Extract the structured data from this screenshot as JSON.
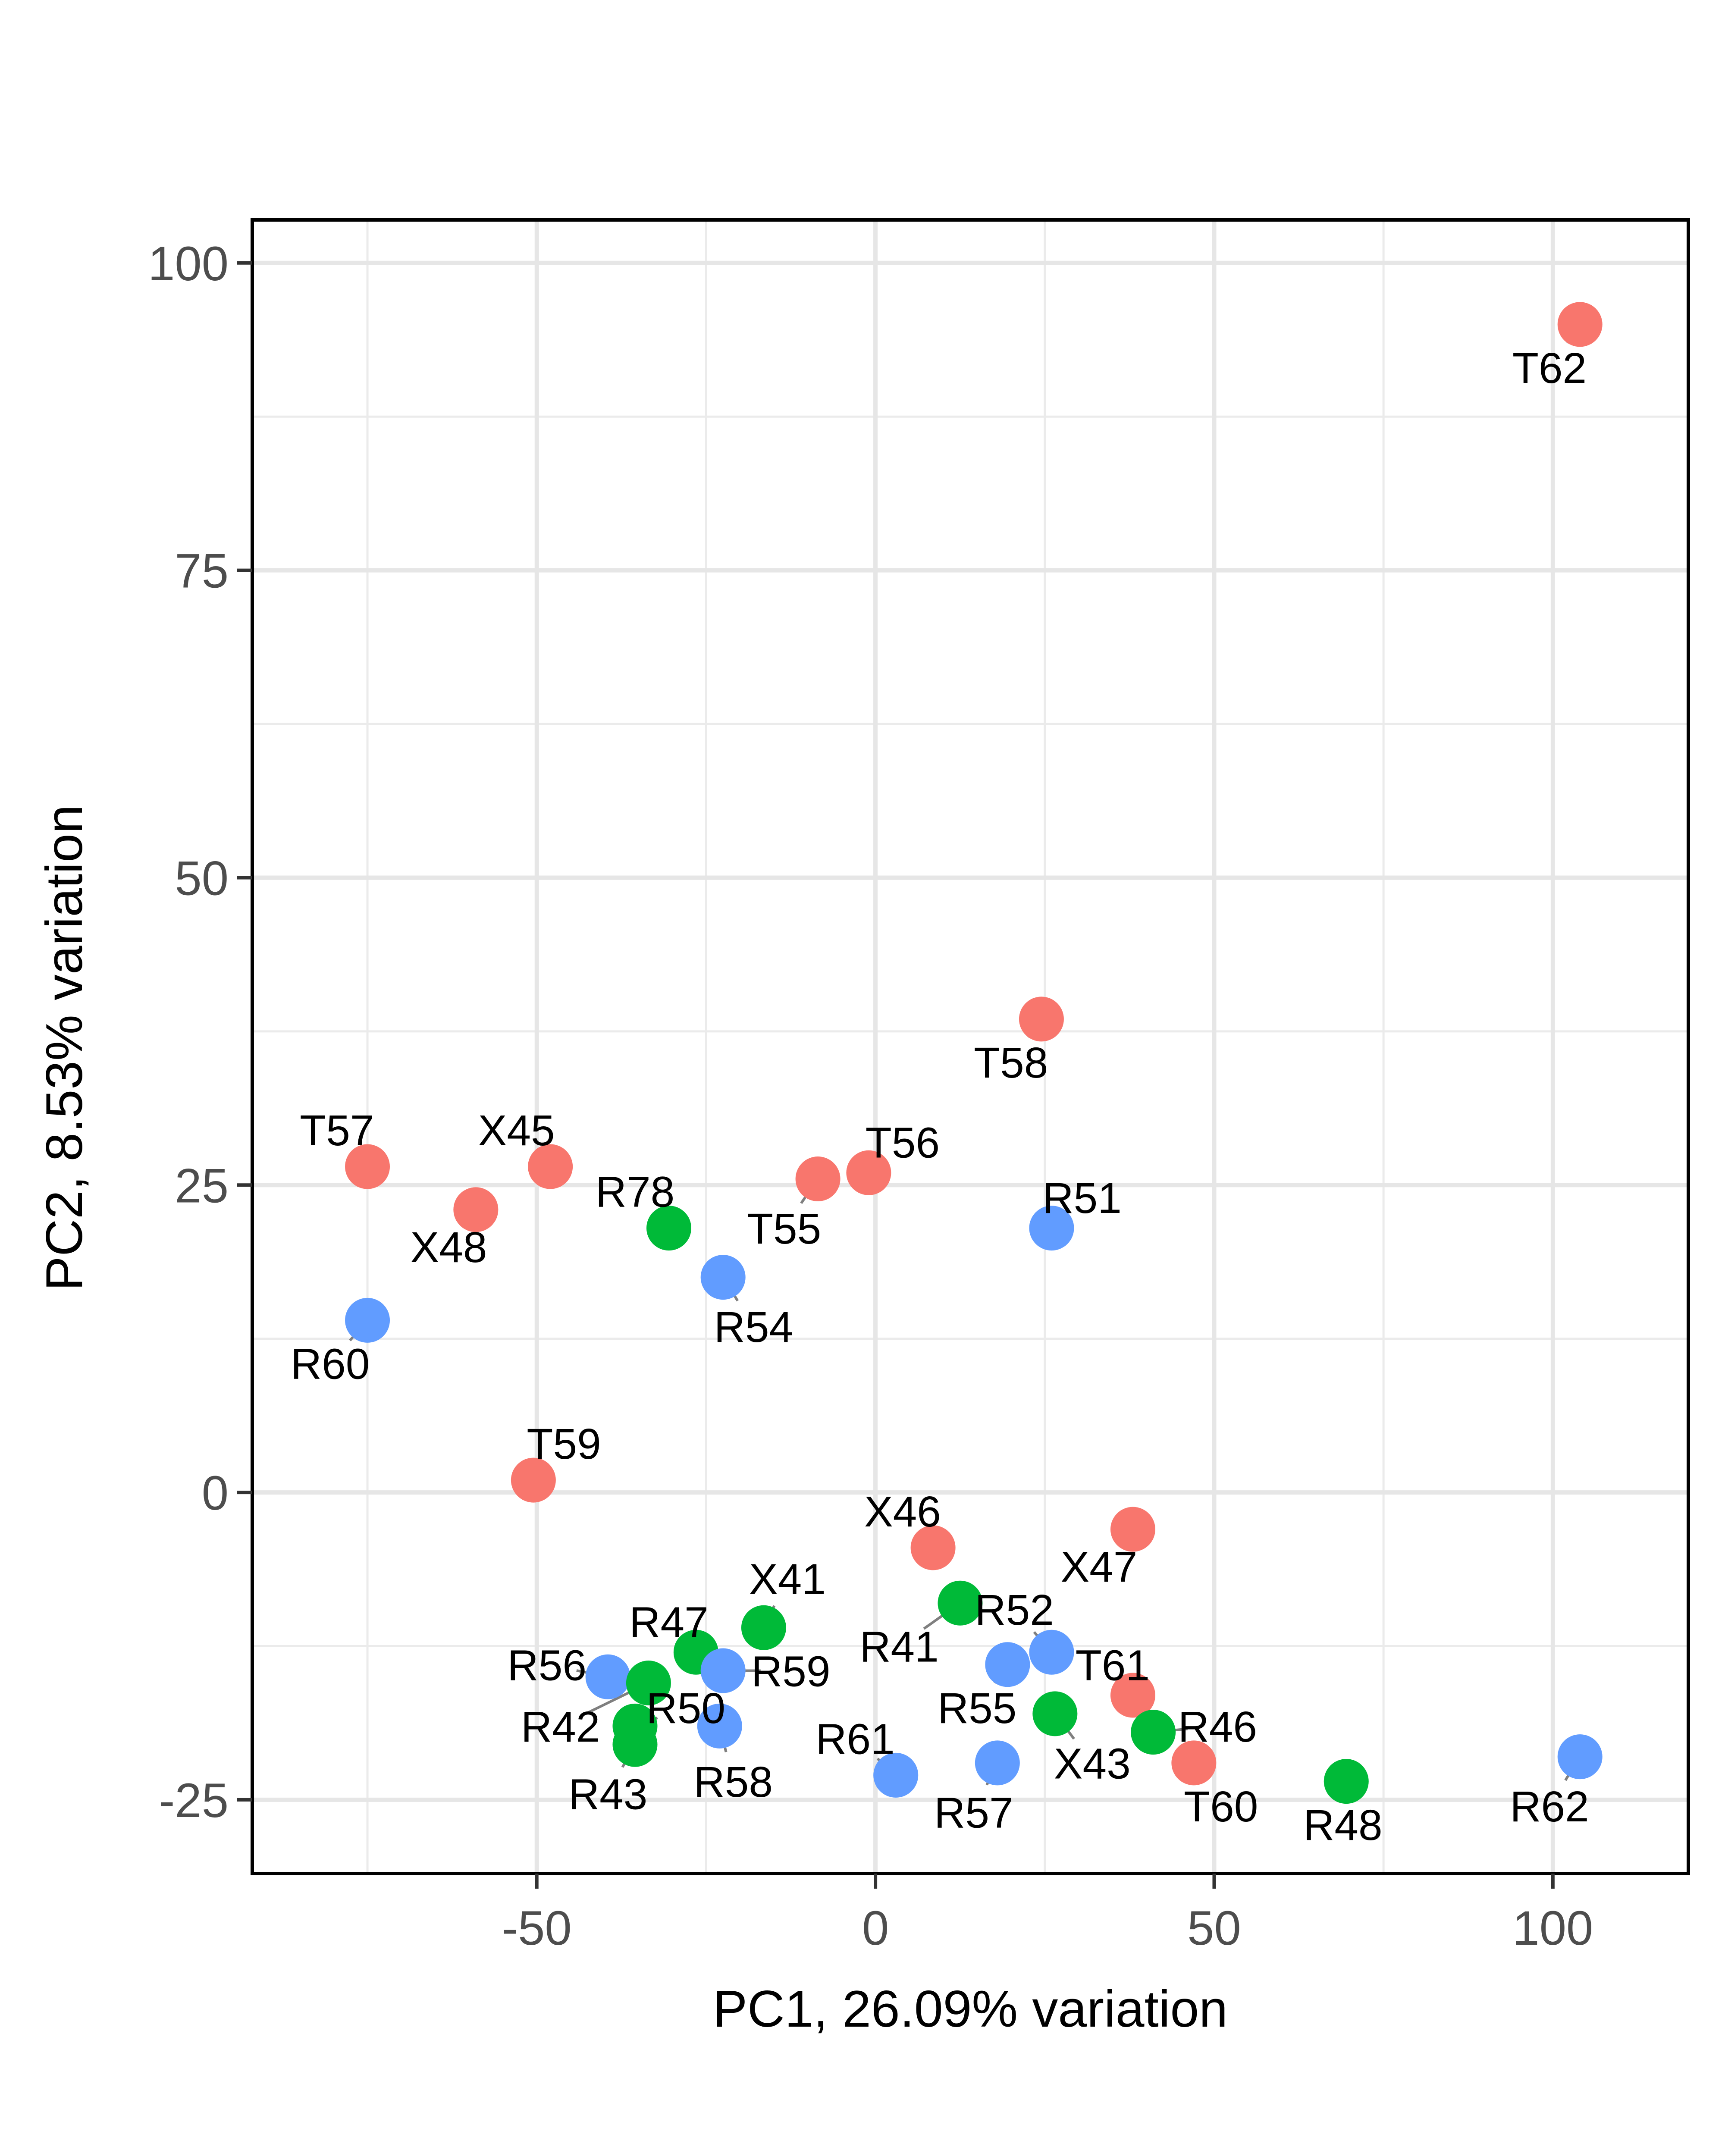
{
  "chart_data": {
    "type": "scatter",
    "title": "",
    "xlabel": "PC1, 26.09% variation",
    "ylabel": "PC2, 8.53% variation",
    "xlim": [
      -92,
      120
    ],
    "ylim": [
      -31,
      103.5
    ],
    "xticks": [
      -50,
      0,
      50,
      100
    ],
    "xtick_labels": [
      "-50",
      "0",
      "50",
      "100"
    ],
    "yticks": [
      -25,
      0,
      25,
      50,
      75,
      100
    ],
    "ytick_labels": [
      "-25",
      "0",
      "25",
      "50",
      "75",
      "100"
    ],
    "grid": true,
    "legend": "none",
    "group_colors": {
      "red": "#F8766D",
      "green": "#00BA38",
      "blue": "#619CFF"
    },
    "points": [
      {
        "label": "T62",
        "x": 104,
        "y": 95,
        "group": "red",
        "label_x": 99.5,
        "label_y": 91.5
      },
      {
        "label": "T58",
        "x": 24.5,
        "y": 38.5,
        "group": "red",
        "label_x": 20,
        "label_y": 35
      },
      {
        "label": "T57",
        "x": -75,
        "y": 26.5,
        "group": "red",
        "label_x": -79.5,
        "label_y": 29.5
      },
      {
        "label": "X45",
        "x": -48,
        "y": 26.5,
        "group": "red",
        "label_x": -53,
        "label_y": 29.5
      },
      {
        "label": "T56",
        "x": -1,
        "y": 26,
        "group": "red",
        "label_x": 4,
        "label_y": 28.5
      },
      {
        "label": "T55",
        "x": -8.5,
        "y": 25.5,
        "group": "red",
        "label_x": -13.5,
        "label_y": 21.5
      },
      {
        "label": "X48",
        "x": -59,
        "y": 23,
        "group": "red",
        "label_x": -63,
        "label_y": 20
      },
      {
        "label": "R78",
        "x": -30.5,
        "y": 21.5,
        "group": "green",
        "label_x": -35.5,
        "label_y": 24.5
      },
      {
        "label": "R51",
        "x": 26,
        "y": 21.5,
        "group": "blue",
        "label_x": 30.5,
        "label_y": 24
      },
      {
        "label": "R54",
        "x": -22.5,
        "y": 17.5,
        "group": "blue",
        "label_x": -18,
        "label_y": 13.5
      },
      {
        "label": "R60",
        "x": -75,
        "y": 14,
        "group": "blue",
        "label_x": -80.5,
        "label_y": 10.5
      },
      {
        "label": "T59",
        "x": -50.5,
        "y": 1,
        "group": "red",
        "label_x": -46,
        "label_y": 4
      },
      {
        "label": "X47",
        "x": 38,
        "y": -3,
        "group": "red",
        "label_x": 33,
        "label_y": -6
      },
      {
        "label": "X46",
        "x": 8.5,
        "y": -4.5,
        "group": "red",
        "label_x": 4,
        "label_y": -1.5
      },
      {
        "label": "R41",
        "x": 12.5,
        "y": -9,
        "group": "green",
        "label_x": 3.5,
        "label_y": -12.5
      },
      {
        "label": "X41",
        "x": -16.5,
        "y": -11,
        "group": "green",
        "label_x": -13,
        "label_y": -7
      },
      {
        "label": "R52",
        "x": 26,
        "y": -13,
        "group": "blue",
        "label_x": 20.5,
        "label_y": -9.5
      },
      {
        "label": "R47",
        "x": -26.5,
        "y": -13,
        "group": "green",
        "label_x": -30.5,
        "label_y": -10.5
      },
      {
        "label": "R55",
        "x": 19.5,
        "y": -14,
        "group": "blue",
        "label_x": 15,
        "label_y": -17.5
      },
      {
        "label": "R59",
        "x": -22.5,
        "y": -14.5,
        "group": "blue",
        "label_x": -12.5,
        "label_y": -14.5
      },
      {
        "label": "T61",
        "x": 38,
        "y": -16.5,
        "group": "red",
        "label_x": 35,
        "label_y": -14
      },
      {
        "label": "X43",
        "x": 26.5,
        "y": -18,
        "group": "green",
        "label_x": 32,
        "label_y": -22
      },
      {
        "label": "R56",
        "x": -39.5,
        "y": -15,
        "group": "blue",
        "label_x": -48.5,
        "label_y": -14
      },
      {
        "label": "R42",
        "x": -33.5,
        "y": -15.5,
        "group": "green",
        "label_x": -46.5,
        "label_y": -19
      },
      {
        "label": "R50",
        "x": -35.5,
        "y": -19,
        "group": "green",
        "label_x": -28,
        "label_y": -17.5
      },
      {
        "label": "R58",
        "x": -23,
        "y": -19,
        "group": "blue",
        "label_x": -21,
        "label_y": -23.5
      },
      {
        "label": "R46",
        "x": 41,
        "y": -19.5,
        "group": "green",
        "label_x": 50.5,
        "label_y": -19
      },
      {
        "label": "R43",
        "x": -35.5,
        "y": -20.5,
        "group": "green",
        "label_x": -39.5,
        "label_y": -24.5
      },
      {
        "label": "T60",
        "x": 47,
        "y": -22,
        "group": "red",
        "label_x": 51,
        "label_y": -25.5
      },
      {
        "label": "R57",
        "x": 18,
        "y": -22,
        "group": "blue",
        "label_x": 14.5,
        "label_y": -26
      },
      {
        "label": "R61",
        "x": 3,
        "y": -23,
        "group": "blue",
        "label_x": -3,
        "label_y": -20
      },
      {
        "label": "R48",
        "x": 69.5,
        "y": -23.5,
        "group": "green",
        "label_x": 69,
        "label_y": -27
      },
      {
        "label": "R62",
        "x": 104,
        "y": -21.5,
        "group": "blue",
        "label_x": 99.5,
        "label_y": -25.5
      }
    ]
  }
}
